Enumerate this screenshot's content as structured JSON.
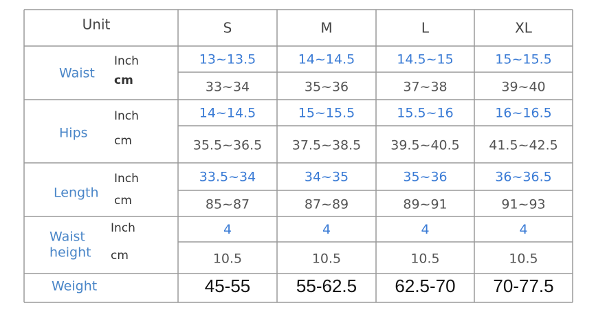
{
  "table": {
    "header": [
      "Unit",
      "S",
      "M",
      "L",
      "XL"
    ],
    "rows": [
      {
        "label": "Waist",
        "units": [
          "Inch",
          "cm"
        ],
        "values": [
          [
            "13~13.5",
            "14~14.5",
            "14.5~15",
            "15~15.5"
          ],
          [
            "33~34",
            "35~36",
            "37~38",
            "39~40"
          ]
        ]
      },
      {
        "label": "Hips",
        "units": [
          "Inch",
          "cm"
        ],
        "values": [
          [
            "14~14.5",
            "15~15.5",
            "15.5~16",
            "16~16.5"
          ],
          [
            "35.5~36.5",
            "37.5~38.5",
            "39.5~40.5",
            "41.5~42.5"
          ]
        ]
      },
      {
        "label": "Length",
        "units": [
          "Inch",
          "cm"
        ],
        "values": [
          [
            "33.5~34",
            "34~35",
            "35~36",
            "36~36.5"
          ],
          [
            "85~87",
            "87~89",
            "89~91",
            "91~93"
          ]
        ]
      },
      {
        "label": [
          "Waist",
          "height"
        ],
        "units": [
          "Inch",
          "cm"
        ],
        "values": [
          [
            "4",
            "4",
            "4",
            "4"
          ],
          [
            "10.5",
            "10.5",
            "10.5",
            "10.5"
          ]
        ]
      }
    ],
    "weight": {
      "label": "Weight",
      "values": [
        "45-55",
        "55-62.5",
        "62.5-70",
        "70-77.5"
      ]
    }
  }
}
